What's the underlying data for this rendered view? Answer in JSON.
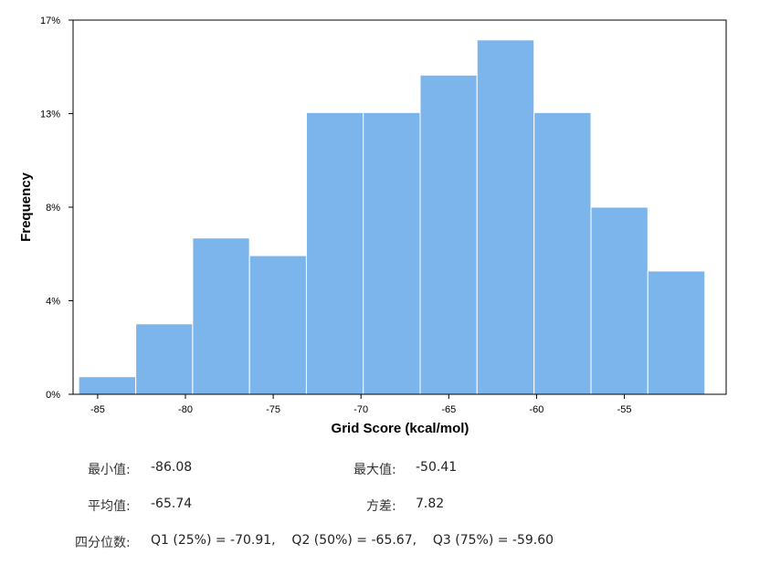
{
  "chart_data": {
    "type": "histogram",
    "xlabel": "Grid Score (kcal/mol)",
    "ylabel": "Frequency",
    "xlim": [
      -86.4,
      -49.2
    ],
    "ylim": [
      0,
      17
    ],
    "x_ticks": [
      -85,
      -80,
      -75,
      -70,
      -65,
      -60,
      -55
    ],
    "x_tick_labels": [
      "-85",
      "-80",
      "-75",
      "-70",
      "-65",
      "-60",
      "-55"
    ],
    "y_ticks": [
      0,
      4.25,
      8.5,
      12.75,
      17
    ],
    "y_tick_labels": [
      "0%",
      "4%",
      "8%",
      "13%",
      "17%"
    ],
    "bin_edges": [
      -86.08,
      -82.83,
      -79.59,
      -76.35,
      -73.11,
      -69.87,
      -66.63,
      -63.39,
      -60.14,
      -56.9,
      -53.66,
      -50.41
    ],
    "values": [
      0.8,
      3.2,
      7.1,
      6.3,
      12.8,
      12.8,
      14.5,
      16.1,
      12.8,
      8.5,
      5.6
    ],
    "bar_color": "#7cb4ec",
    "grid": false
  },
  "stats": {
    "min_label": "最小值:",
    "min_value": "-86.08",
    "max_label": "最大值:",
    "max_value": "-50.41",
    "mean_label": "平均值:",
    "mean_value": "-65.74",
    "var_label": "方差:",
    "var_value": "7.82",
    "quartile_label": "四分位数:",
    "quartile_value": "Q1 (25%) = -70.91,    Q2 (50%) = -65.67,    Q3 (75%) = -59.60"
  }
}
